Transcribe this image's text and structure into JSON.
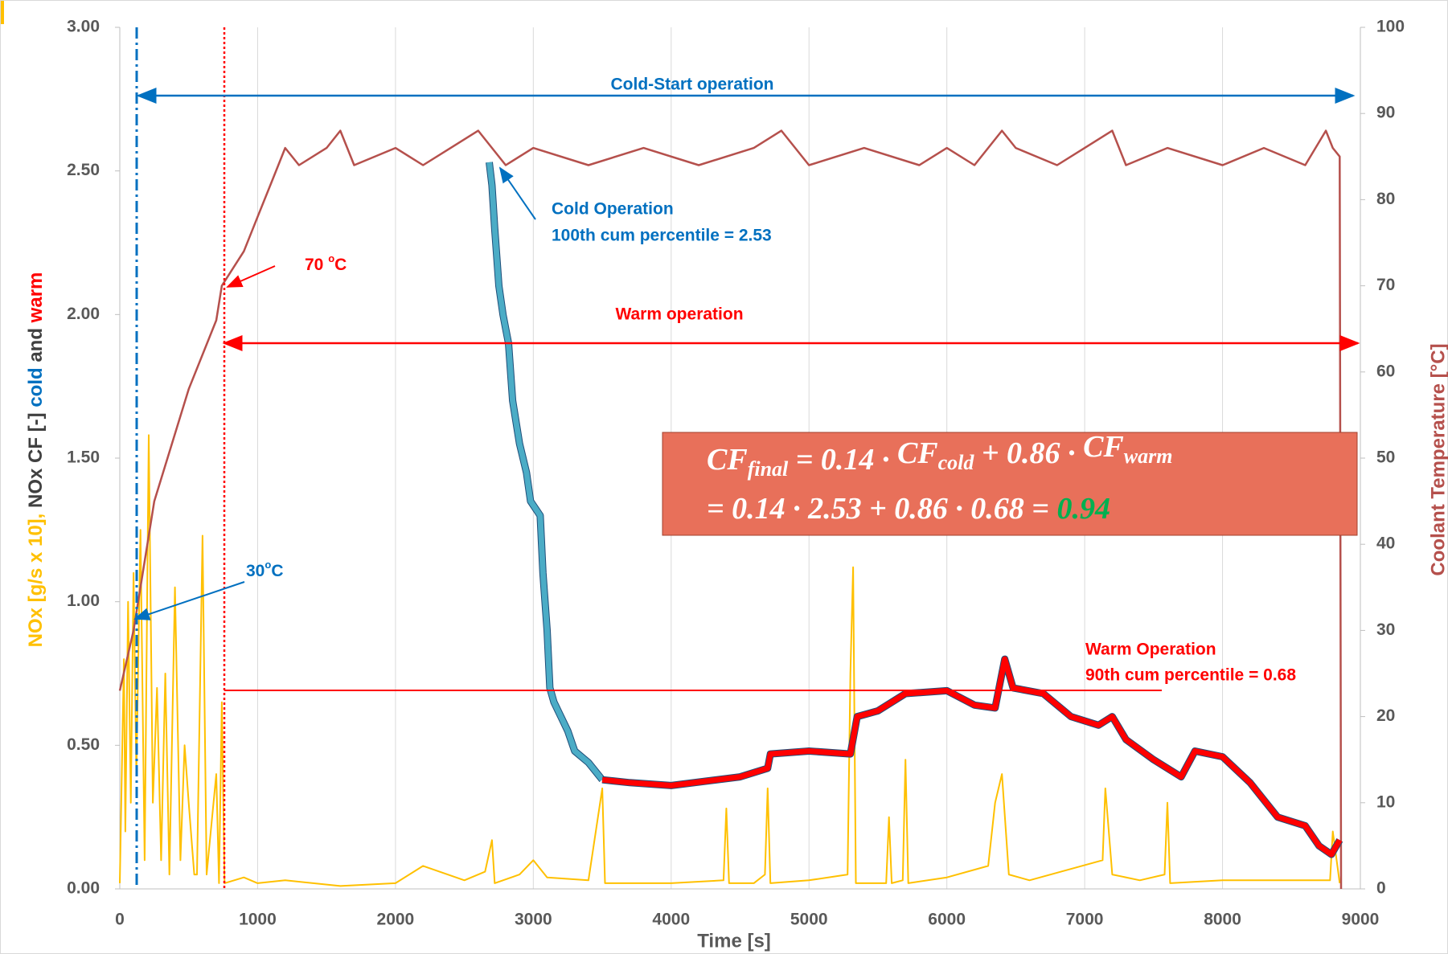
{
  "chart_data": {
    "type": "line",
    "x_label": "Time [s]",
    "y_label": [
      "NOx [g/s x 10],",
      " NOx CF [-] ",
      "cold",
      " and ",
      "warm"
    ],
    "y2_label": "Coolant Temperature [°C]",
    "xlim": [
      0,
      9000
    ],
    "xticks": [
      0,
      1000,
      2000,
      3000,
      4000,
      5000,
      6000,
      7000,
      8000,
      9000
    ],
    "ylim": [
      0,
      3
    ],
    "yticks": [
      {
        "value": 0,
        "label": "0.00"
      },
      {
        "value": 0.5,
        "label": "0.50"
      },
      {
        "value": 1,
        "label": "1.00"
      },
      {
        "value": 1.5,
        "label": "1.50"
      },
      {
        "value": 2,
        "label": "2.00"
      },
      {
        "value": 2.5,
        "label": "2.50"
      },
      {
        "value": 3,
        "label": "3.00"
      }
    ],
    "y2lim": [
      0,
      100
    ],
    "y2ticks": [
      0,
      10,
      20,
      30,
      40,
      50,
      60,
      70,
      80,
      90,
      100
    ],
    "grid": true,
    "series": [
      {
        "color": "#ffc000",
        "width": 2,
        "x": [
          0,
          30,
          40,
          60,
          80,
          100,
          120,
          150,
          180,
          210,
          240,
          270,
          300,
          330,
          360,
          400,
          440,
          470,
          500,
          540,
          560,
          600,
          630,
          700,
          720,
          740,
          760,
          900,
          1000,
          1200,
          1600,
          2000,
          2200,
          2500,
          2650,
          2700,
          2720,
          2900,
          3000,
          3100,
          3400,
          3500,
          3520,
          4000,
          4380,
          4400,
          4420,
          4600,
          4680,
          4700,
          4720,
          5000,
          5280,
          5300,
          5320,
          5340,
          5560,
          5580,
          5600,
          5680,
          5700,
          5720,
          6000,
          6300,
          6350,
          6400,
          6450,
          6600,
          7130,
          7150,
          7200,
          7400,
          7580,
          7600,
          7620,
          8000,
          8780,
          8800,
          8850
        ],
        "values": [
          0.02,
          0.8,
          0.2,
          1.0,
          0.3,
          1.1,
          0.4,
          1.25,
          0.1,
          1.58,
          0.3,
          0.7,
          0.1,
          0.75,
          0.05,
          1.05,
          0.1,
          0.5,
          0.3,
          0.05,
          0.05,
          1.23,
          0.05,
          0.4,
          0.02,
          0.65,
          0.02,
          0.04,
          0.02,
          0.03,
          0.01,
          0.02,
          0.08,
          0.03,
          0.06,
          0.17,
          0.02,
          0.05,
          0.1,
          0.04,
          0.03,
          0.35,
          0.02,
          0.02,
          0.03,
          0.28,
          0.02,
          0.02,
          0.05,
          0.35,
          0.02,
          0.03,
          0.05,
          0.75,
          1.12,
          0.02,
          0.02,
          0.25,
          0.02,
          0.03,
          0.45,
          0.02,
          0.04,
          0.08,
          0.3,
          0.4,
          0.05,
          0.03,
          0.1,
          0.35,
          0.05,
          0.03,
          0.05,
          0.3,
          0.02,
          0.03,
          0.03,
          0.2,
          0.02
        ]
      },
      {
        "color": "#b5504c",
        "width": 2.5,
        "axis": "y2",
        "x": [
          0,
          100,
          250,
          500,
          700,
          740,
          900,
          1000,
          1100,
          1200,
          1300,
          1500,
          1600,
          1700,
          2000,
          2200,
          2400,
          2600,
          2800,
          3000,
          3400,
          3800,
          4200,
          4600,
          4800,
          5000,
          5400,
          5800,
          6000,
          6200,
          6400,
          6500,
          6800,
          7000,
          7200,
          7300,
          7600,
          8000,
          8300,
          8600,
          8750,
          8800,
          8850,
          8860
        ],
        "values": [
          23,
          30,
          45,
          58,
          66,
          70,
          74,
          78,
          82,
          86,
          84,
          86,
          88,
          84,
          86,
          84,
          86,
          88,
          84,
          86,
          84,
          86,
          84,
          86,
          88,
          84,
          86,
          84,
          86,
          84,
          88,
          86,
          84,
          86,
          88,
          84,
          86,
          84,
          86,
          84,
          88,
          86,
          85,
          0
        ]
      },
      {
        "color": "#4bacc6",
        "width": 7,
        "x": [
          2680,
          2700,
          2720,
          2750,
          2780,
          2800,
          2820,
          2850,
          2900,
          2950,
          2980,
          3050,
          3070,
          3100,
          3120,
          3150,
          3200,
          3250,
          3300,
          3400,
          3500
        ],
        "values": [
          2.53,
          2.45,
          2.3,
          2.1,
          2.0,
          1.95,
          1.9,
          1.7,
          1.55,
          1.45,
          1.35,
          1.3,
          1.1,
          0.9,
          0.7,
          0.65,
          0.6,
          0.55,
          0.48,
          0.44,
          0.38
        ]
      },
      {
        "color": "#ff0000",
        "width": 7,
        "x": [
          3500,
          3700,
          4000,
          4500,
          4700,
          4720,
          5000,
          5300,
          5350,
          5500,
          5700,
          6000,
          6200,
          6350,
          6420,
          6480,
          6700,
          6900,
          7100,
          7200,
          7300,
          7500,
          7700,
          7800,
          8000,
          8200,
          8400,
          8600,
          8700,
          8790,
          8850
        ],
        "values": [
          0.38,
          0.37,
          0.36,
          0.39,
          0.42,
          0.47,
          0.48,
          0.47,
          0.6,
          0.62,
          0.68,
          0.69,
          0.64,
          0.63,
          0.8,
          0.7,
          0.68,
          0.6,
          0.57,
          0.6,
          0.52,
          0.45,
          0.39,
          0.48,
          0.46,
          0.37,
          0.25,
          0.22,
          0.15,
          0.12,
          0.17
        ]
      }
    ],
    "annotations": {
      "cold_start": "Cold-Start operation",
      "cold_op": "Cold Operation",
      "cold_pct": "100th cum percentile = 2.53",
      "t70": [
        "70 ",
        "o",
        "C"
      ],
      "warm": "Warm operation",
      "t30": [
        "30",
        "o",
        "C"
      ],
      "warm_op": "Warm Operation",
      "warm_pct": "90th cum percentile = 0.68"
    },
    "formula": {
      "line1": [
        "CF",
        "final",
        " = 0.14 · ",
        "CF",
        "cold",
        " + 0.86 · ",
        "CF",
        "warm"
      ],
      "line2": [
        "= 0.14 · 2.53 + 0.86 · 0.68 = ",
        "0.94"
      ]
    }
  }
}
